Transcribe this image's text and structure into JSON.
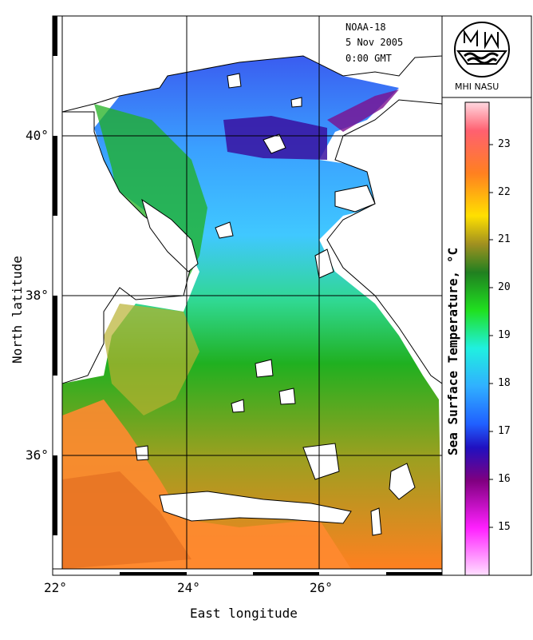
{
  "header": {
    "satellite": "NOAA-18",
    "date": "5 Nov 2005",
    "time": "0:00 GMT"
  },
  "logo": {
    "text": "MHI NASU"
  },
  "axes": {
    "x_title": "East longitude",
    "y_title": "North latitude",
    "x_ticks": [
      "22°",
      "24°",
      "26°"
    ],
    "y_ticks": [
      "40°",
      "38°",
      "36°"
    ]
  },
  "colorbar": {
    "title": "Sea Surface Temperature, °C",
    "ticks": [
      "23",
      "22",
      "21",
      "20",
      "19",
      "18",
      "17",
      "16",
      "15"
    ],
    "range": [
      14.2,
      23.8
    ]
  },
  "colors": {
    "land": "#ffffff",
    "coast": "#000000",
    "cold": "#2a00a0",
    "warm": "#ff7a20"
  }
}
